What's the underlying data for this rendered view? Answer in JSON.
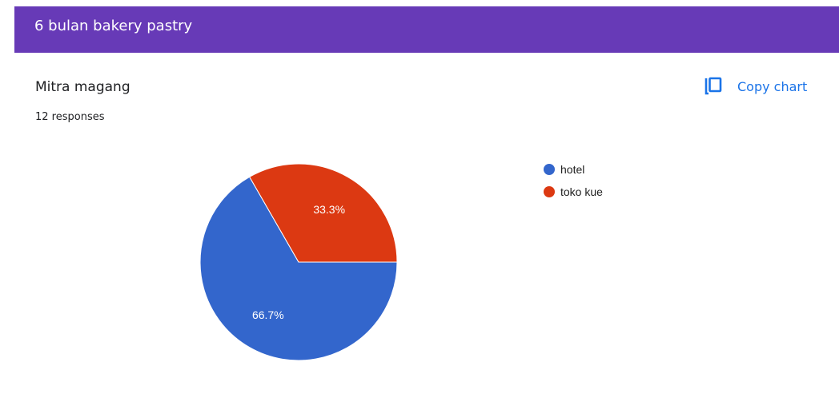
{
  "header": {
    "title": "6 bulan bakery pastry",
    "color": "#673ab7"
  },
  "question": {
    "title": "Mitra magang",
    "responses": "12 responses"
  },
  "toolbar": {
    "copy_label": "Copy chart",
    "copy_icon": "copy-icon",
    "accent": "#1a73e8"
  },
  "chart_data": {
    "type": "pie",
    "title": "",
    "legend_position": "right",
    "slices": [
      {
        "label": "hotel",
        "value": 66.7,
        "display": "66.7%",
        "color": "#3366cc"
      },
      {
        "label": "toko kue",
        "value": 33.3,
        "display": "33.3%",
        "color": "#dc3912"
      }
    ]
  }
}
